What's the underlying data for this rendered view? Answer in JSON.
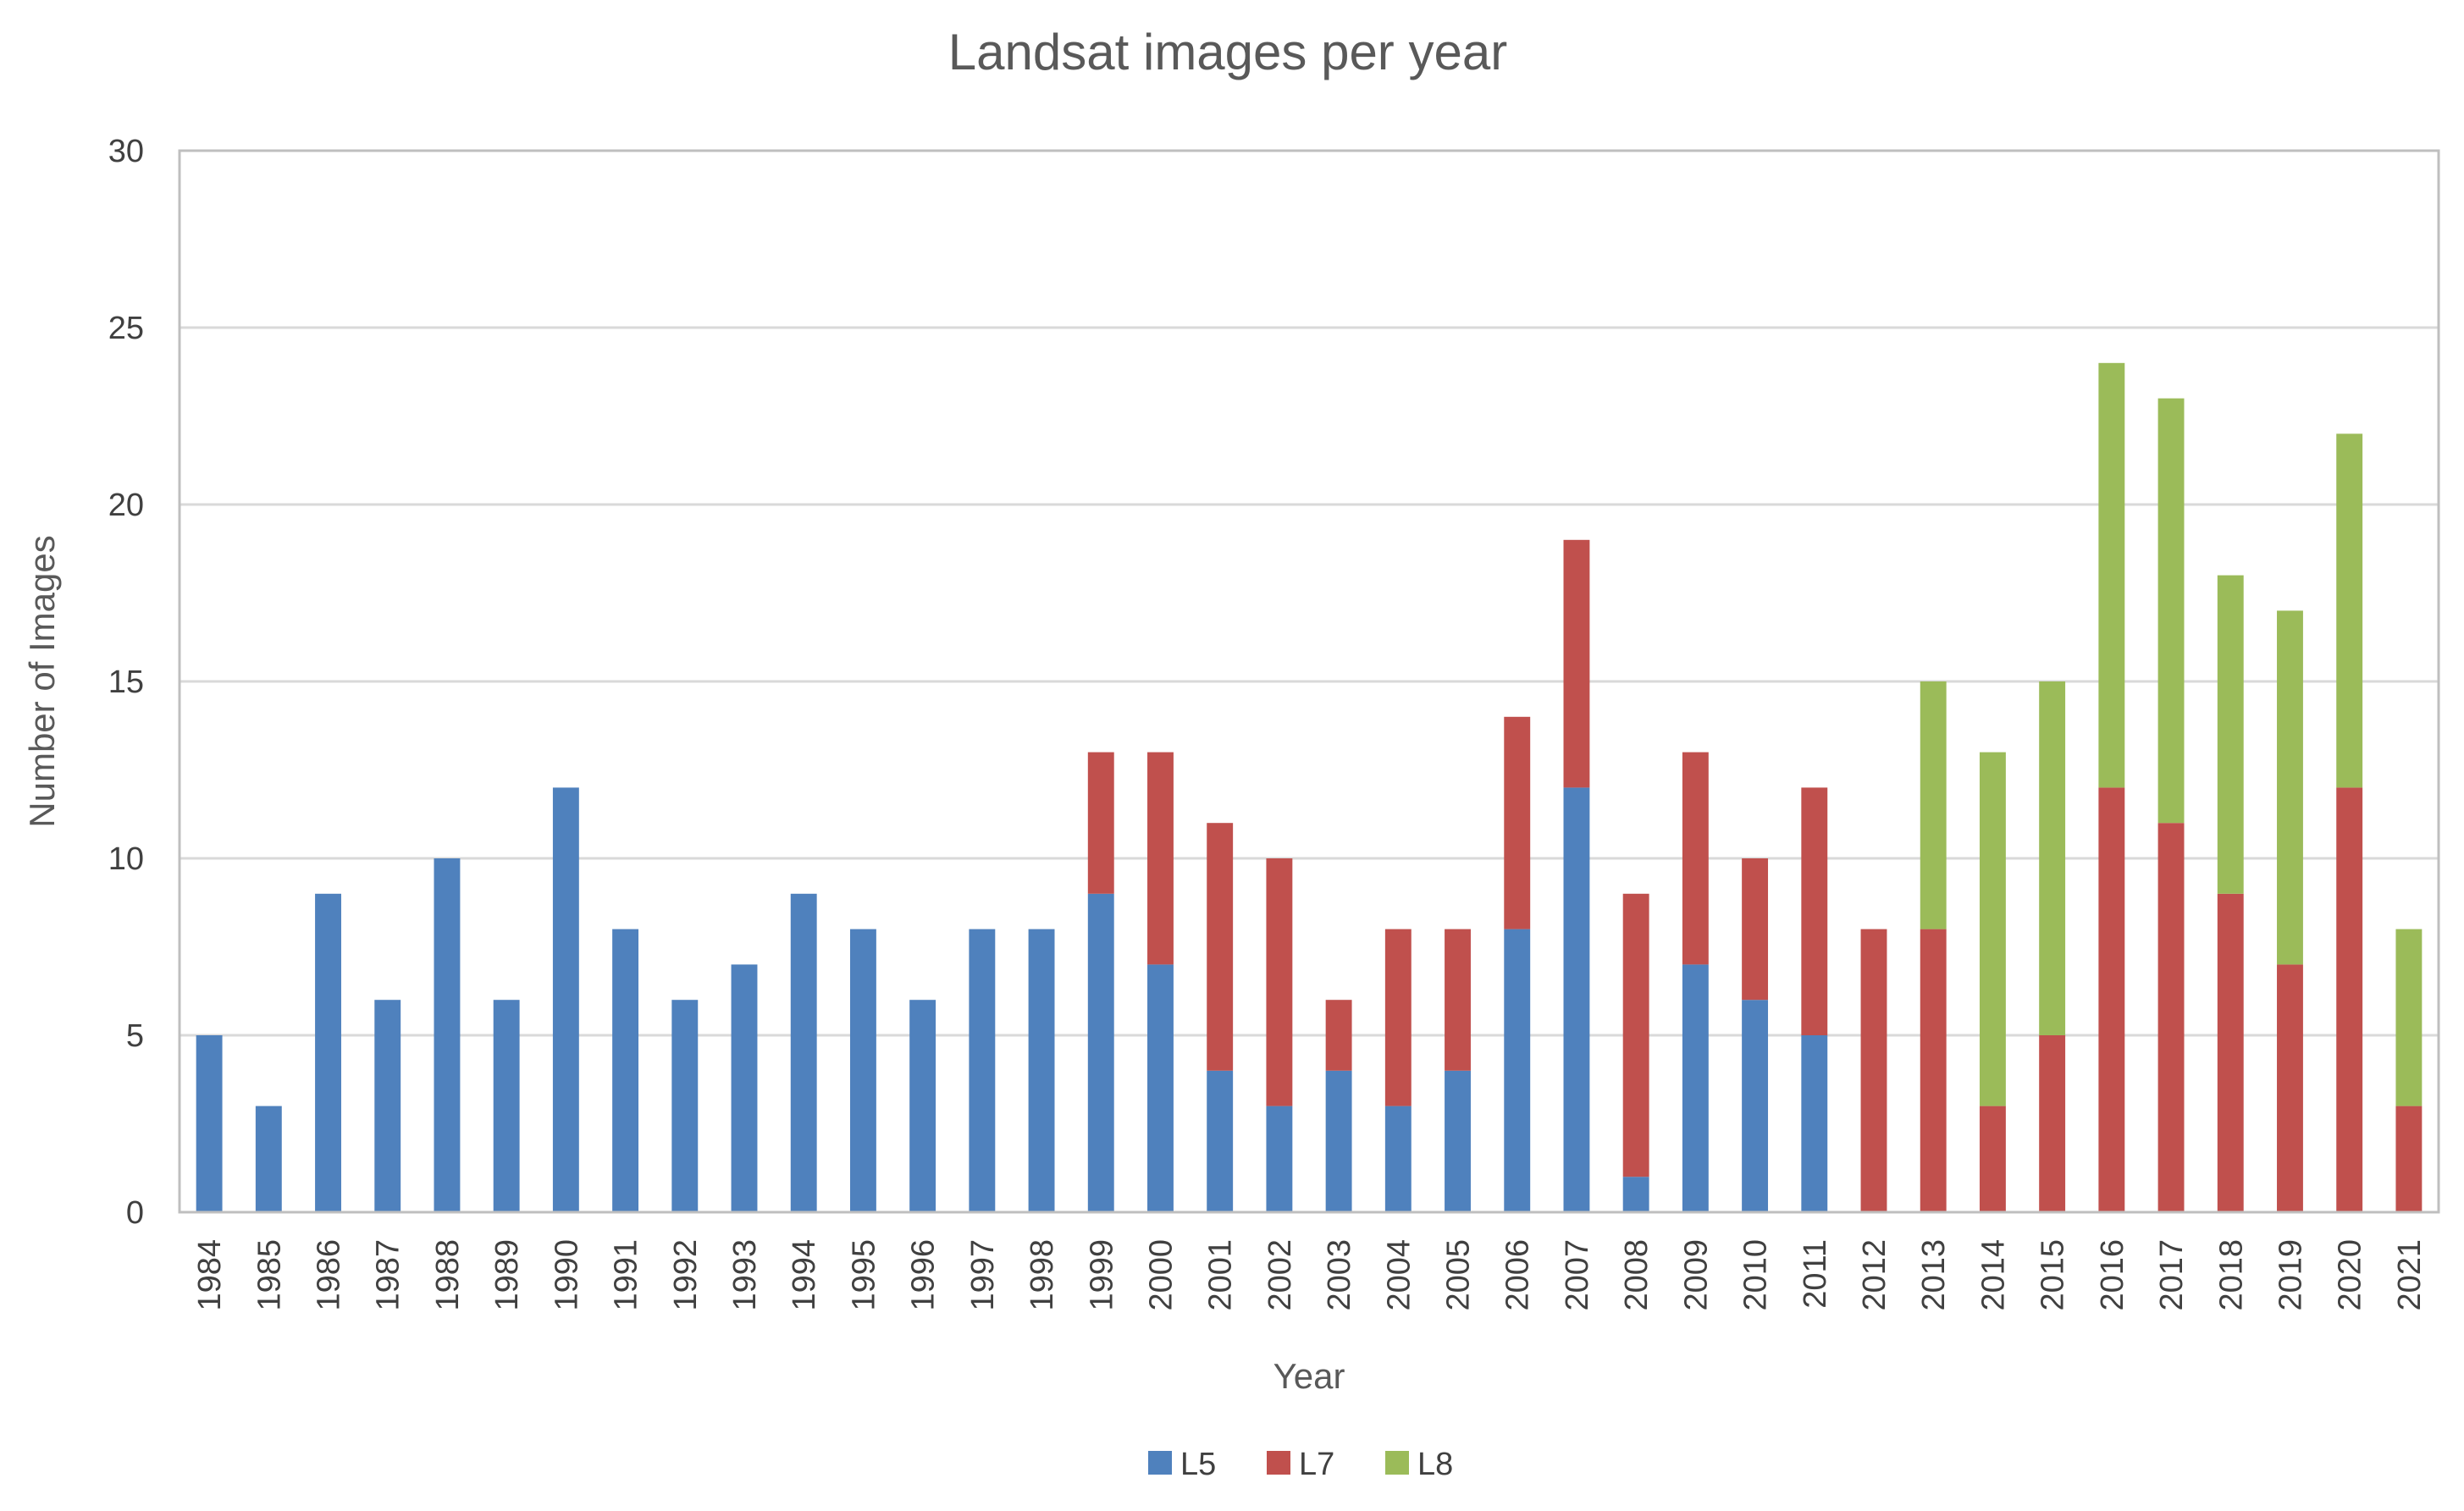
{
  "chart_data": {
    "type": "bar",
    "stacked": true,
    "title": "Landsat images per year",
    "xlabel": "Year",
    "ylabel": "Number of Images",
    "ylim": [
      0,
      30
    ],
    "yticks": [
      "0",
      "5",
      "10",
      "15",
      "20",
      "25",
      "30"
    ],
    "grid": true,
    "legend_position": "bottom",
    "categories": [
      "1984",
      "1985",
      "1986",
      "1987",
      "1988",
      "1989",
      "1990",
      "1991",
      "1992",
      "1993",
      "1994",
      "1995",
      "1996",
      "1997",
      "1998",
      "1999",
      "2000",
      "2001",
      "2002",
      "2003",
      "2004",
      "2005",
      "2006",
      "2007",
      "2008",
      "2009",
      "2010",
      "2011",
      "2012",
      "2013",
      "2014",
      "2015",
      "2016",
      "2017",
      "2018",
      "2019",
      "2020",
      "2021"
    ],
    "series": [
      {
        "name": "L5",
        "color": "#4f81bd",
        "values": [
          5,
          3,
          9,
          6,
          10,
          6,
          12,
          8,
          6,
          7,
          9,
          8,
          6,
          8,
          8,
          9,
          7,
          4,
          3,
          4,
          3,
          4,
          8,
          12,
          1,
          7,
          6,
          5,
          0,
          0,
          0,
          0,
          0,
          0,
          0,
          0,
          0,
          0
        ]
      },
      {
        "name": "L7",
        "color": "#c0504d",
        "values": [
          0,
          0,
          0,
          0,
          0,
          0,
          0,
          0,
          0,
          0,
          0,
          0,
          0,
          0,
          0,
          4,
          6,
          7,
          7,
          2,
          5,
          4,
          6,
          7,
          8,
          6,
          4,
          7,
          8,
          8,
          3,
          5,
          12,
          11,
          9,
          7,
          12,
          3
        ]
      },
      {
        "name": "L8",
        "color": "#9bbb59",
        "values": [
          0,
          0,
          0,
          0,
          0,
          0,
          0,
          0,
          0,
          0,
          0,
          0,
          0,
          0,
          0,
          0,
          0,
          0,
          0,
          0,
          0,
          0,
          0,
          0,
          0,
          0,
          0,
          0,
          0,
          7,
          10,
          10,
          12,
          12,
          9,
          10,
          10,
          5
        ]
      }
    ]
  }
}
